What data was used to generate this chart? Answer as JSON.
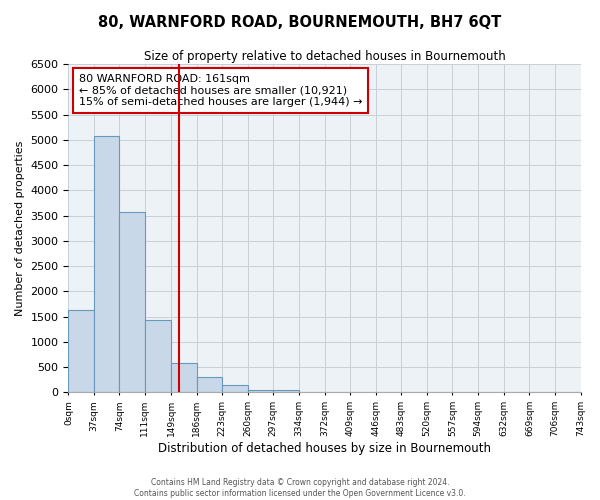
{
  "title": "80, WARNFORD ROAD, BOURNEMOUTH, BH7 6QT",
  "subtitle": "Size of property relative to detached houses in Bournemouth",
  "xlabel": "Distribution of detached houses by size in Bournemouth",
  "ylabel": "Number of detached properties",
  "bin_edges": [
    0,
    37,
    74,
    111,
    149,
    186,
    223,
    260,
    297,
    334,
    372,
    409,
    446,
    483,
    520,
    557,
    594,
    632,
    669,
    706,
    743
  ],
  "bar_heights": [
    1640,
    5080,
    3580,
    1430,
    590,
    300,
    150,
    50,
    40,
    0,
    0,
    0,
    0,
    0,
    0,
    0,
    0,
    0,
    0,
    0
  ],
  "bar_color": "#c8d8e8",
  "bar_edgecolor": "#6699bb",
  "bar_linewidth": 0.8,
  "vline_color": "#cc0000",
  "vline_x": 161,
  "annotation_box_text": "80 WARNFORD ROAD: 161sqm\n← 85% of detached houses are smaller (10,921)\n15% of semi-detached houses are larger (1,944) →",
  "box_edgecolor": "#cc0000",
  "box_facecolor": "white",
  "ylim": [
    0,
    6500
  ],
  "yticks": [
    0,
    500,
    1000,
    1500,
    2000,
    2500,
    3000,
    3500,
    4000,
    4500,
    5000,
    5500,
    6000,
    6500
  ],
  "grid_color": "#c8d0d8",
  "background_color": "#edf2f7",
  "footer_line1": "Contains HM Land Registry data © Crown copyright and database right 2024.",
  "footer_line2": "Contains public sector information licensed under the Open Government Licence v3.0.",
  "tick_labels": [
    "0sqm",
    "37sqm",
    "74sqm",
    "111sqm",
    "149sqm",
    "186sqm",
    "223sqm",
    "260sqm",
    "297sqm",
    "334sqm",
    "372sqm",
    "409sqm",
    "446sqm",
    "483sqm",
    "520sqm",
    "557sqm",
    "594sqm",
    "632sqm",
    "669sqm",
    "706sqm",
    "743sqm"
  ]
}
